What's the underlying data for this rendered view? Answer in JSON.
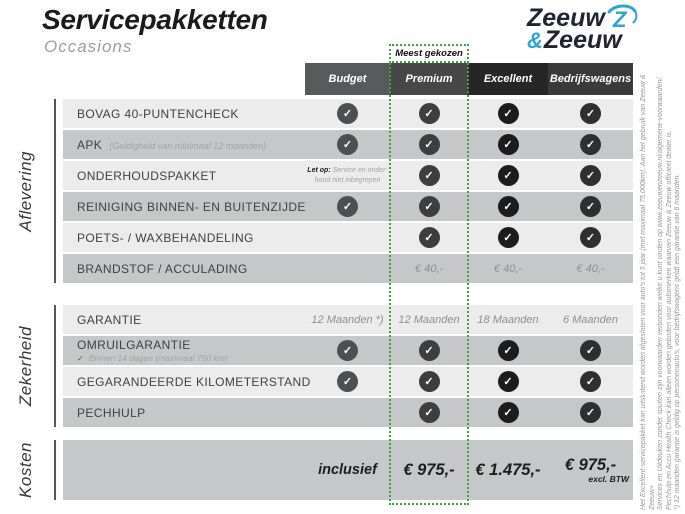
{
  "page": {
    "title": "Servicepakketten",
    "subtitle": "Occasions"
  },
  "logo": {
    "word1": "Zeeuw",
    "amp": "&",
    "word2": "Zeeuw"
  },
  "badge": {
    "label": "Meest gekozen"
  },
  "colors": {
    "accent_green": "#3aa53a",
    "brand_blue": "#2aa3d8",
    "row_light": "#ececec",
    "row_dark": "#c6c7c8"
  },
  "columns": [
    {
      "key": "budget",
      "label": "Budget",
      "header_bg": "#58595b",
      "check_bg": "#4e4f51"
    },
    {
      "key": "premium",
      "label": "Premium",
      "header_bg": "#474747",
      "check_bg": "#3e3e3e",
      "highlight": true
    },
    {
      "key": "excellent",
      "label": "Excellent",
      "header_bg": "#262626",
      "check_bg": "#1c1c1c"
    },
    {
      "key": "bedrijfswagens",
      "label": "Bedrijfswagens",
      "header_bg": "#3a3a3a",
      "check_bg": "#2f2f2f"
    }
  ],
  "sections": [
    {
      "label": "Aflevering",
      "rows": [
        {
          "label": "BOVAG 40-PUNTENCHECK",
          "cells": [
            {
              "t": "check"
            },
            {
              "t": "check"
            },
            {
              "t": "check"
            },
            {
              "t": "check"
            }
          ]
        },
        {
          "label": "APK",
          "sublabel": "(Geldigheid van minimaal 12 maanden)",
          "sublabel_inline": true,
          "cells": [
            {
              "t": "check"
            },
            {
              "t": "check"
            },
            {
              "t": "check"
            },
            {
              "t": "check"
            }
          ]
        },
        {
          "label": "ONDERHOUDSPAKKET",
          "cells": [
            {
              "t": "note",
              "b": "Let op:",
              "lines": [
                "Service en onder-",
                "houd niet inbegrepen"
              ]
            },
            {
              "t": "check"
            },
            {
              "t": "check"
            },
            {
              "t": "check"
            }
          ]
        },
        {
          "label": "REINIGING BINNEN- EN BUITENZIJDE",
          "cells": [
            {
              "t": "check"
            },
            {
              "t": "check"
            },
            {
              "t": "check"
            },
            {
              "t": "check"
            }
          ]
        },
        {
          "label": "POETS- / WAXBEHANDELING",
          "cells": [
            {
              "t": "empty"
            },
            {
              "t": "check"
            },
            {
              "t": "check"
            },
            {
              "t": "check"
            }
          ]
        },
        {
          "label": "BRANDSTOF / ACCULADING",
          "cells": [
            {
              "t": "empty"
            },
            {
              "t": "text",
              "v": "€ 40,-"
            },
            {
              "t": "text",
              "v": "€ 40,-"
            },
            {
              "t": "text",
              "v": "€ 40,-"
            }
          ]
        }
      ]
    },
    {
      "label": "Zekerheid",
      "rows": [
        {
          "label": "GARANTIE",
          "cells": [
            {
              "t": "text",
              "v": "12 Maanden *)"
            },
            {
              "t": "text",
              "v": "12 Maanden"
            },
            {
              "t": "text",
              "v": "18 Maanden"
            },
            {
              "t": "text",
              "v": "6 Maanden"
            }
          ]
        },
        {
          "label": "OMRUILGARANTIE",
          "sublabel": "Binnen 14 dagen (maximaal 750 km)",
          "sublabel_check": true,
          "cells": [
            {
              "t": "check"
            },
            {
              "t": "check"
            },
            {
              "t": "check"
            },
            {
              "t": "check"
            }
          ]
        },
        {
          "label": "GEGARANDEERDE KILOMETERSTAND",
          "cells": [
            {
              "t": "check"
            },
            {
              "t": "check"
            },
            {
              "t": "check"
            },
            {
              "t": "check"
            }
          ]
        },
        {
          "label": "PECHHULP",
          "cells": [
            {
              "t": "empty"
            },
            {
              "t": "check"
            },
            {
              "t": "check"
            },
            {
              "t": "check"
            }
          ]
        }
      ]
    },
    {
      "label": "Kosten",
      "tall": true,
      "rows": [
        {
          "label": "",
          "cells": [
            {
              "t": "price",
              "v": "inclusief",
              "small": true
            },
            {
              "t": "price",
              "v": "€ 975,-"
            },
            {
              "t": "price",
              "v": "€ 1.475,-"
            },
            {
              "t": "price",
              "v": "€ 975,-",
              "sub": "excl. BTW"
            }
          ]
        }
      ]
    }
  ],
  "disclaimer": {
    "lines": [
      "Het Excellent-servicepakket kan uitsluitend worden afgesloten voor auto's tot 5 jaar (met maximaal 75.000km). Aan het gebruik van Zeeuw & Zeeuw+",
      "Services en Uitdeuken zonder spuiten zijn voorwaarden verbonden welke u kunt vinden op www.zeeuwenzeeuw.nl/algemene-voorwaarden/.",
      "Pechhulp en Accu Health Check kan alleen worden geboden voor automerken waarvan Zeeuw & Zeeuw officieel dealer is.",
      "*) 12 maanden garantie is geldig op personenauto's, voor bedrijfswagens geldt een garantie van 6 maanden."
    ]
  }
}
